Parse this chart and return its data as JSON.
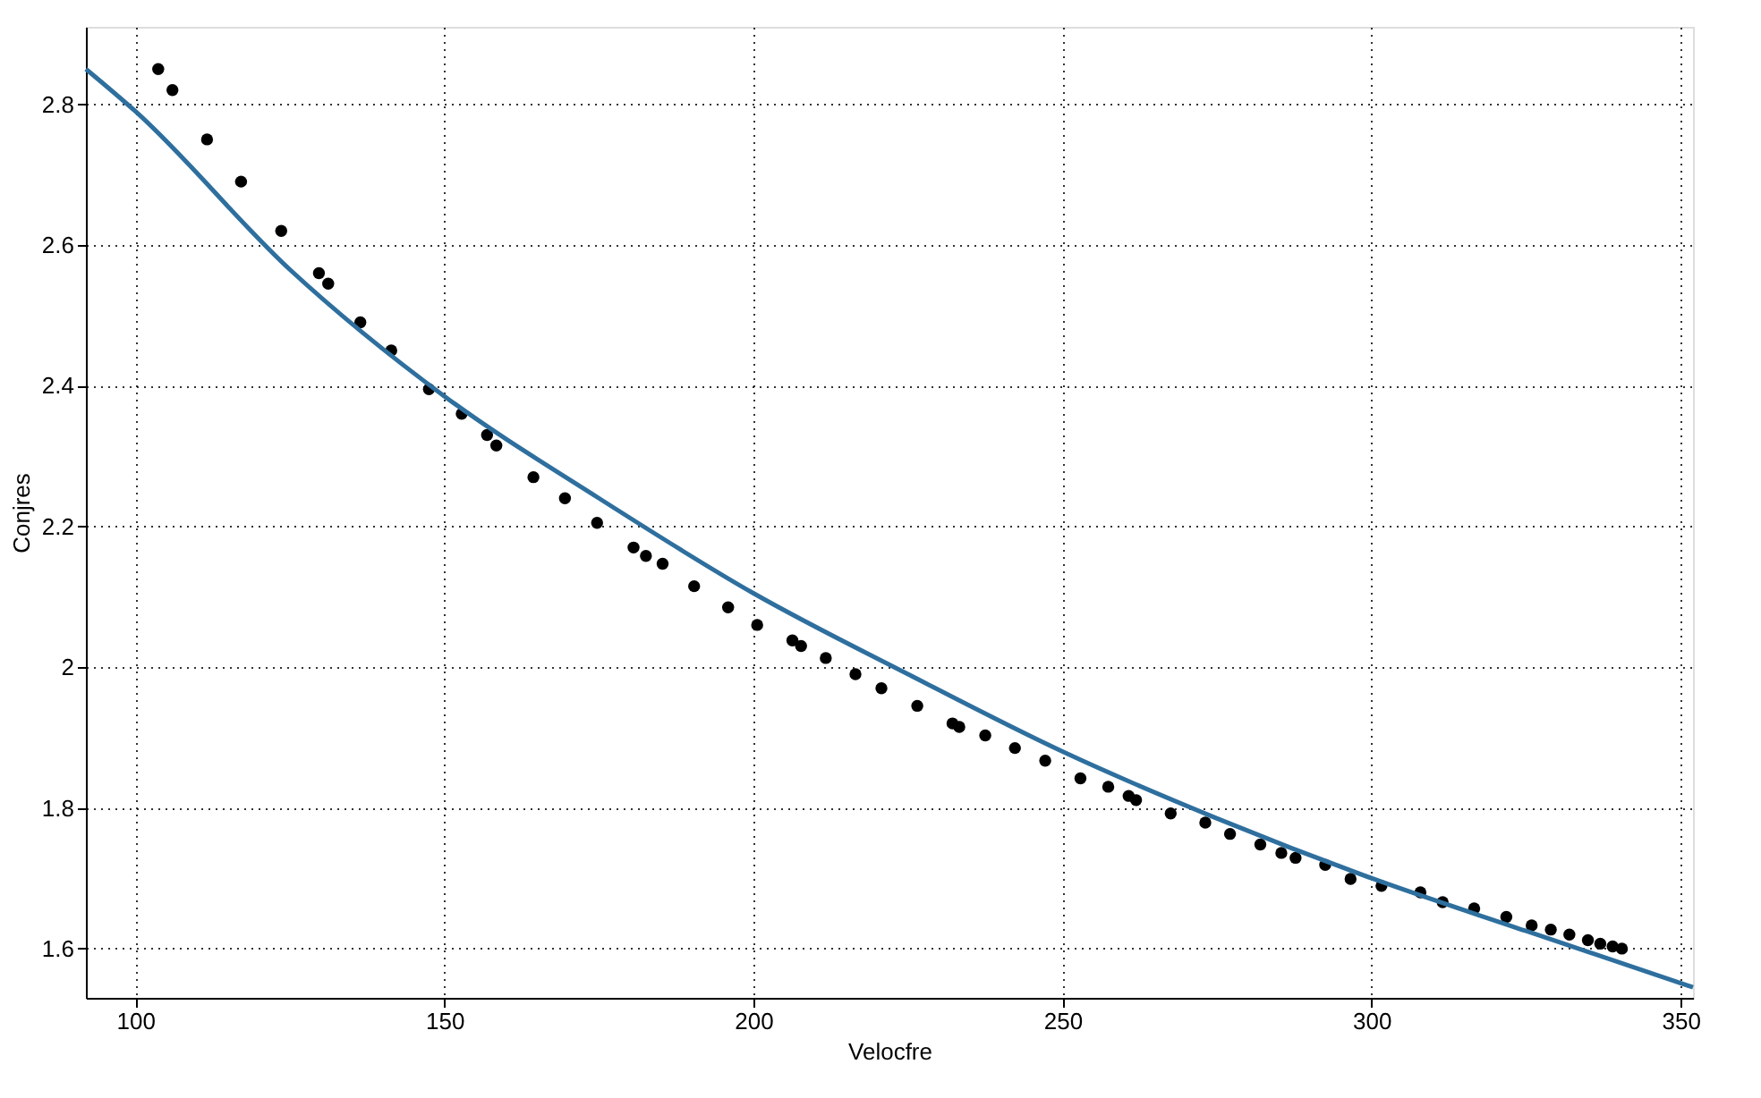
{
  "chart_data": {
    "type": "scatter",
    "xlabel": "Velocfre",
    "ylabel": "Conjres",
    "xlim": [
      92,
      352
    ],
    "ylim": [
      1.53,
      2.91
    ],
    "xticks": [
      100,
      150,
      200,
      250,
      300,
      350
    ],
    "yticks": [
      1.6,
      1.8,
      2,
      2.2,
      2.4,
      2.6,
      2.8
    ],
    "grid": true,
    "series": [
      {
        "marker": "circle",
        "color": "#000000",
        "x": [
          103.7,
          106.0,
          111.6,
          117.1,
          123.6,
          129.7,
          131.2,
          136.4,
          141.4,
          147.5,
          152.8,
          156.9,
          158.4,
          164.4,
          169.5,
          174.7,
          180.6,
          182.6,
          185.3,
          190.4,
          195.9,
          200.6,
          206.3,
          207.7,
          211.7,
          216.5,
          220.7,
          226.5,
          232.2,
          233.3,
          237.5,
          242.3,
          247.2,
          252.9,
          257.4,
          260.7,
          261.9,
          267.5,
          273.1,
          277.1,
          282.0,
          285.4,
          287.7,
          292.5,
          296.6,
          301.6,
          307.9,
          311.5,
          316.6,
          321.8,
          325.9,
          329.0,
          332.0,
          335.0,
          337.0,
          339.0,
          340.5
        ],
        "values": [
          2.85,
          2.82,
          2.75,
          2.69,
          2.62,
          2.56,
          2.545,
          2.49,
          2.45,
          2.395,
          2.36,
          2.33,
          2.315,
          2.27,
          2.24,
          2.205,
          2.17,
          2.158,
          2.147,
          2.115,
          2.085,
          2.06,
          2.038,
          2.03,
          2.013,
          1.99,
          1.97,
          1.945,
          1.92,
          1.915,
          1.903,
          1.885,
          1.867,
          1.842,
          1.83,
          1.817,
          1.811,
          1.792,
          1.779,
          1.763,
          1.748,
          1.736,
          1.729,
          1.719,
          1.699,
          1.689,
          1.68,
          1.666,
          1.657,
          1.645,
          1.633,
          1.627,
          1.62,
          1.612,
          1.607,
          1.603,
          1.6
        ]
      },
      {
        "type": "line",
        "marker": "none",
        "line_style": "solid",
        "color": "#2e6f9e",
        "x": [
          92,
          100,
          125,
          150,
          175,
          200,
          225,
          250,
          275,
          300,
          325,
          352
        ],
        "values": [
          2.85,
          2.79,
          2.565,
          2.385,
          2.24,
          2.105,
          1.99,
          1.88,
          1.785,
          1.7,
          1.625,
          1.545
        ]
      }
    ]
  }
}
